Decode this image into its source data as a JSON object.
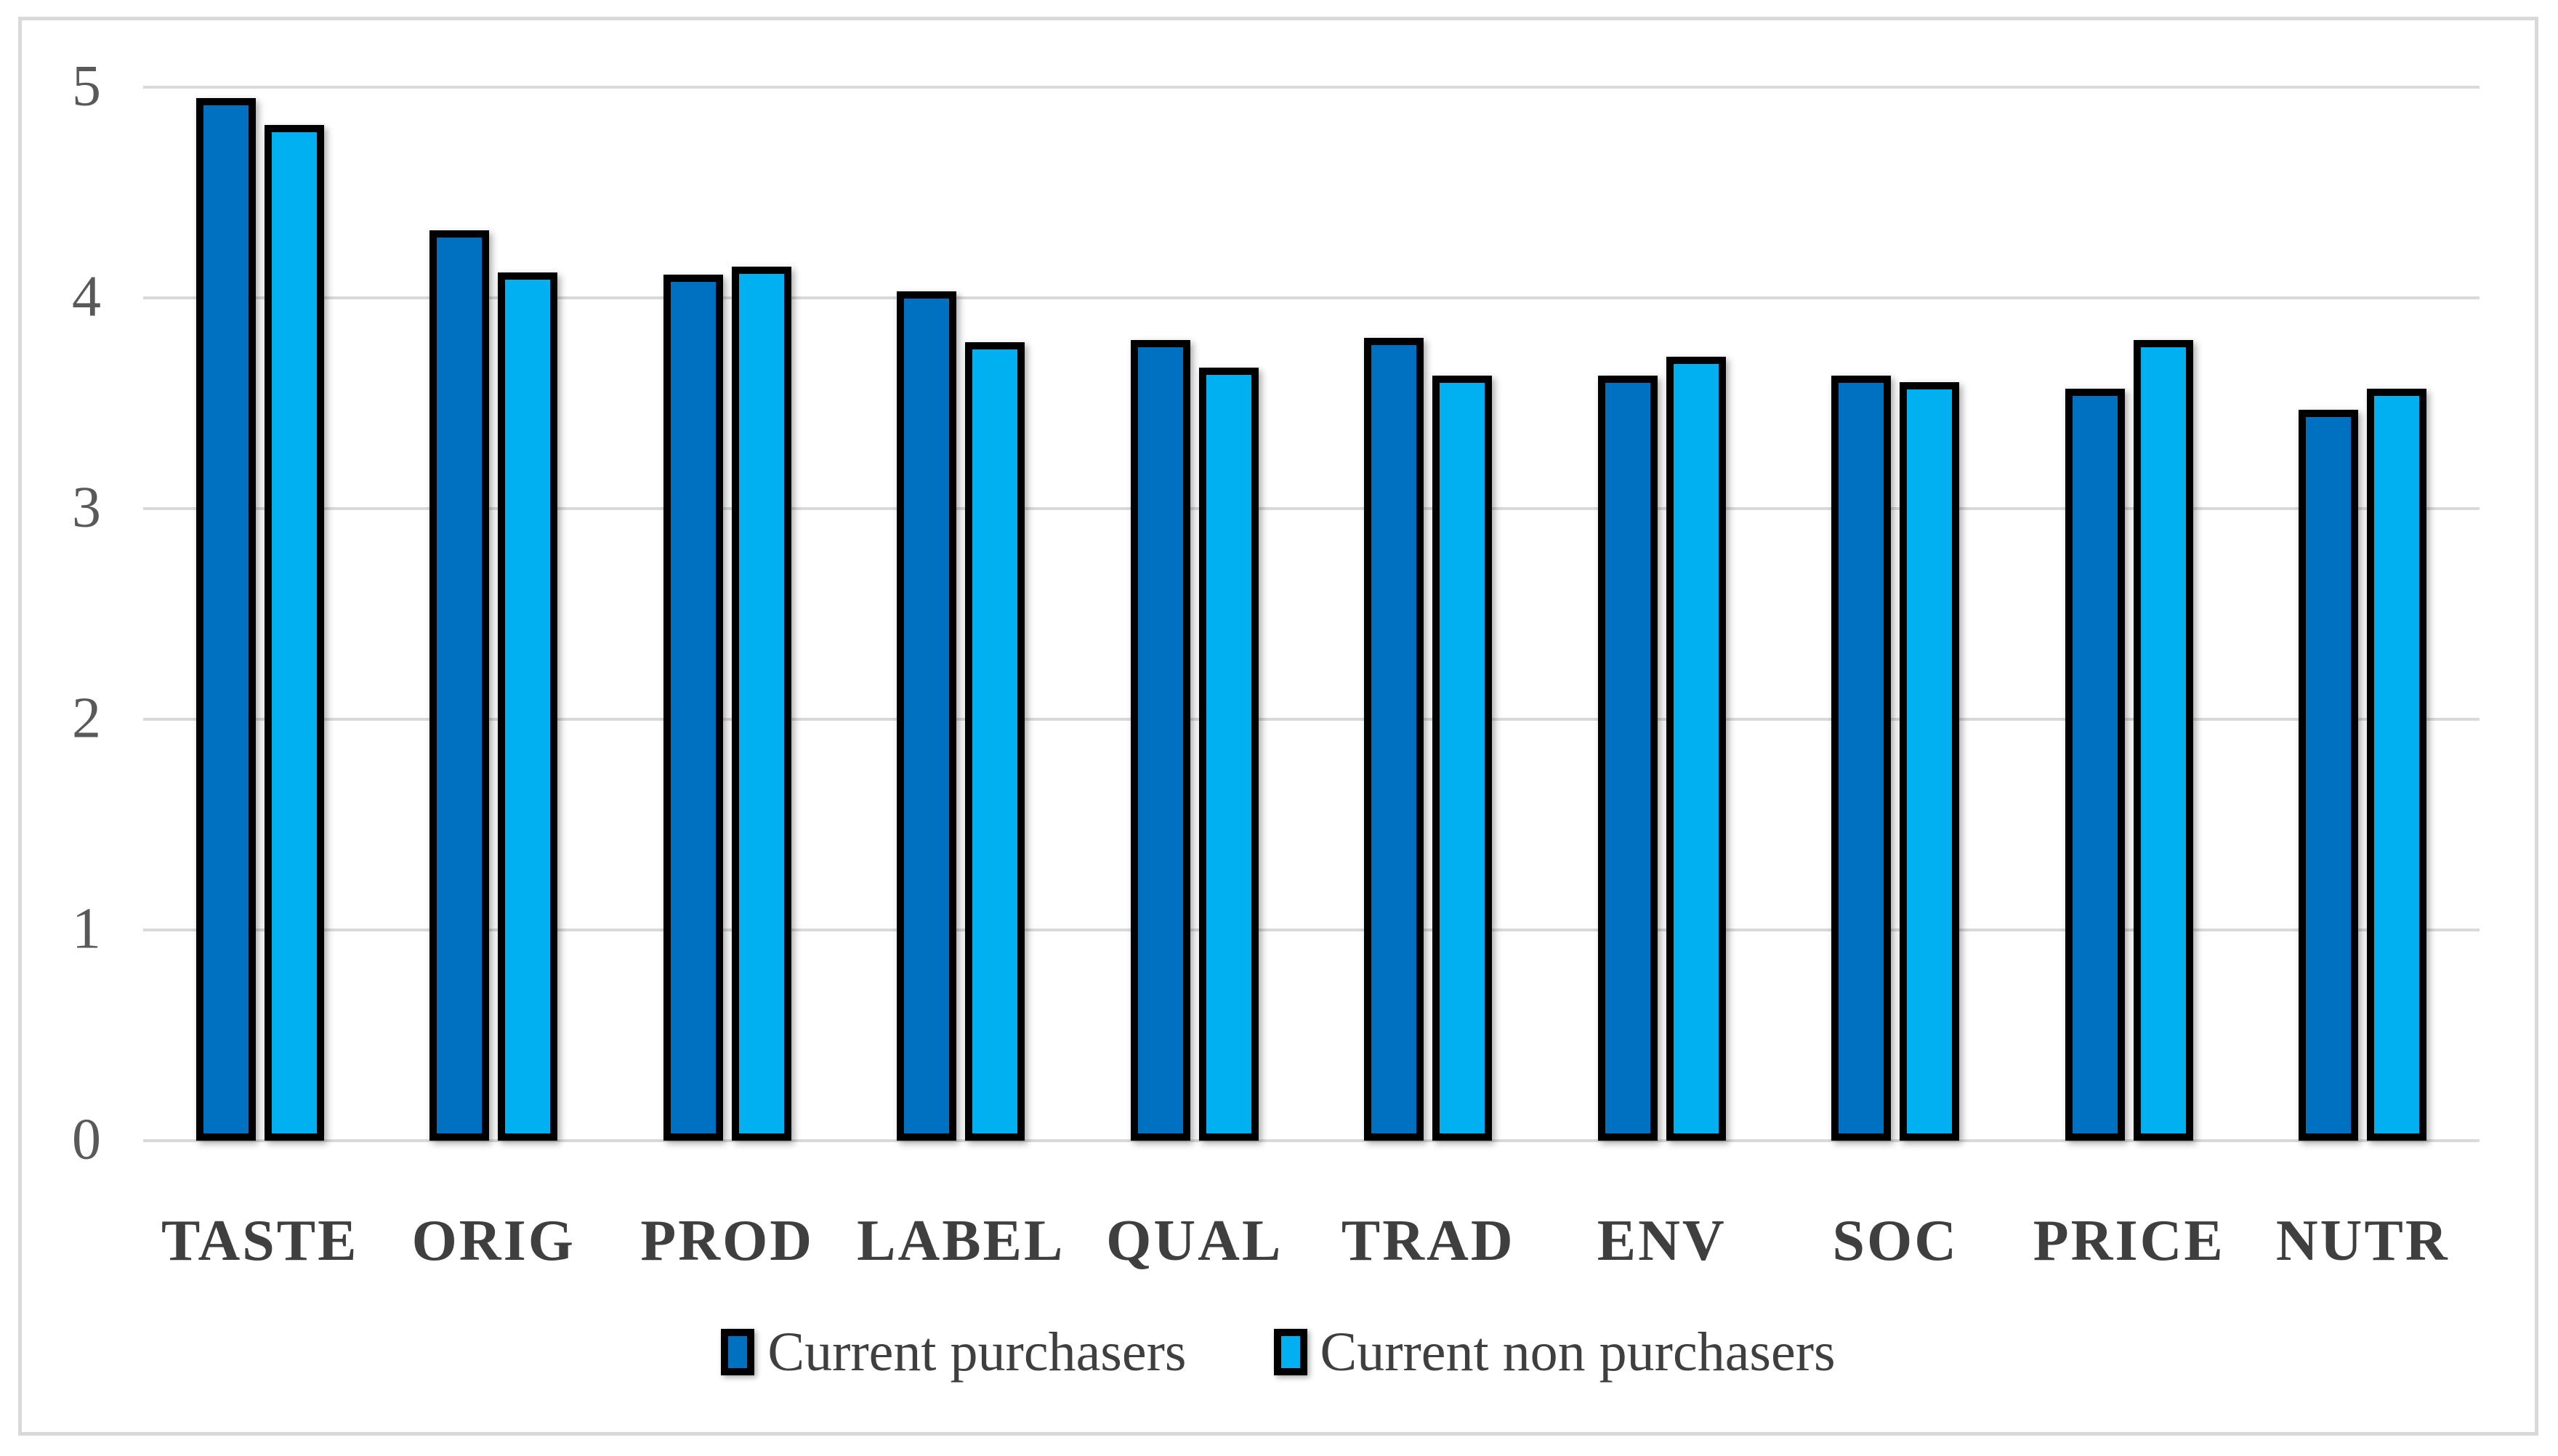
{
  "chart_data": {
    "type": "bar",
    "grouped": true,
    "title": "",
    "xlabel": "",
    "ylabel": "",
    "categories": [
      "TASTE",
      "ORIG",
      "PROD",
      "LABEL",
      "QUAL",
      "TRAD",
      "ENV",
      "SOC",
      "PRICE",
      "NUTR"
    ],
    "series": [
      {
        "name": "Current purchasers",
        "color": "#0070C0",
        "values": [
          4.95,
          4.32,
          4.11,
          4.03,
          3.8,
          3.81,
          3.63,
          3.63,
          3.57,
          3.47
        ]
      },
      {
        "name": "Current non purchasers",
        "color": "#00B0F0",
        "values": [
          4.82,
          4.12,
          4.15,
          3.79,
          3.67,
          3.63,
          3.72,
          3.6,
          3.8,
          3.57
        ]
      }
    ],
    "ylim": [
      0,
      5
    ],
    "yticks": [
      0,
      1,
      2,
      3,
      4,
      5
    ],
    "grid": "horizontal",
    "gridline_color": "#D9D9D9",
    "bar_outline_color": "#000000",
    "tick_label_color": "#595959",
    "category_label_color": "#3F3F3F",
    "legend_position": "bottom"
  }
}
